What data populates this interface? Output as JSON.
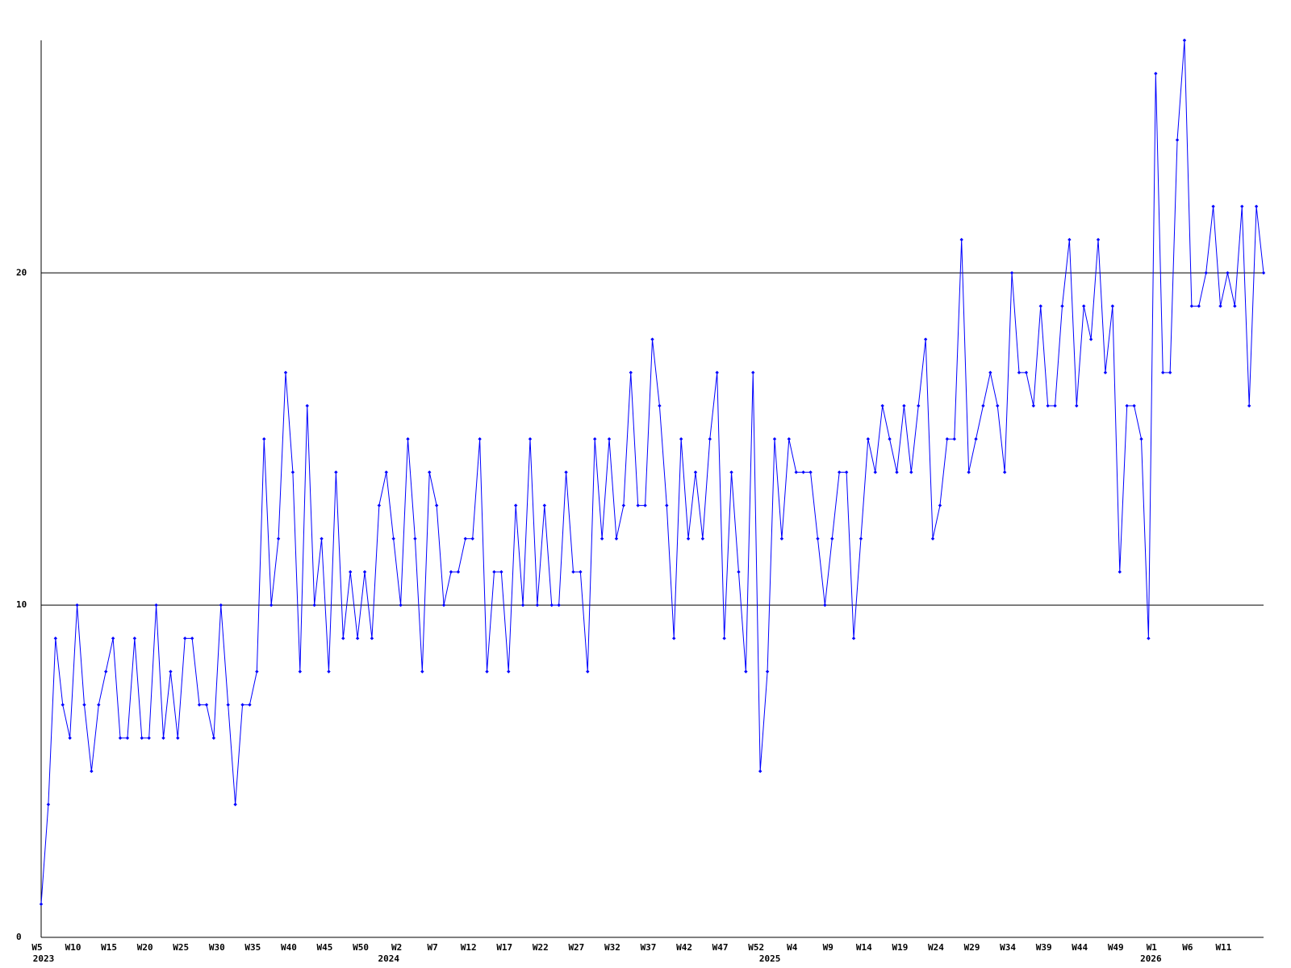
{
  "chart_data": {
    "type": "line",
    "categories": [
      "W5",
      null,
      null,
      null,
      null,
      "W10",
      null,
      null,
      null,
      null,
      "W15",
      null,
      null,
      null,
      null,
      "W20",
      null,
      null,
      null,
      null,
      "W25",
      null,
      null,
      null,
      null,
      "W30",
      null,
      null,
      null,
      null,
      "W35",
      null,
      null,
      null,
      null,
      "W40",
      null,
      null,
      null,
      null,
      "W45",
      null,
      null,
      null,
      null,
      "W50",
      null,
      null,
      null,
      null,
      "W2",
      null,
      null,
      null,
      null,
      "W7",
      null,
      null,
      null,
      null,
      "W12",
      null,
      null,
      null,
      null,
      "W17",
      null,
      null,
      null,
      null,
      "W22",
      null,
      null,
      null,
      null,
      "W27",
      null,
      null,
      null,
      null,
      "W32",
      null,
      null,
      null,
      null,
      "W37",
      null,
      null,
      null,
      null,
      "W42",
      null,
      null,
      null,
      null,
      "W47",
      null,
      null,
      null,
      null,
      "W52",
      null,
      null,
      null,
      null,
      "W4",
      null,
      null,
      null,
      null,
      "W9",
      null,
      null,
      null,
      null,
      "W14",
      null,
      null,
      null,
      null,
      "W19",
      null,
      null,
      null,
      null,
      "W24",
      null,
      null,
      null,
      null,
      "W29",
      null,
      null,
      null,
      null,
      "W34",
      null,
      null,
      null,
      null,
      "W39",
      null,
      null,
      null,
      null,
      "W44",
      null,
      null,
      null,
      null,
      "W49",
      null,
      null,
      null,
      null,
      "W1",
      null,
      null,
      null,
      null,
      "W6",
      null,
      null,
      null,
      null,
      "W11",
      null,
      null,
      null,
      null,
      null
    ],
    "category_groups": [
      "2023",
      null,
      null,
      null,
      null,
      null,
      null,
      null,
      null,
      null,
      null,
      null,
      null,
      null,
      null,
      null,
      null,
      null,
      null,
      null,
      null,
      null,
      null,
      null,
      null,
      null,
      null,
      null,
      null,
      null,
      null,
      null,
      null,
      null,
      null,
      null,
      null,
      null,
      null,
      null,
      null,
      null,
      null,
      null,
      null,
      null,
      null,
      null,
      "2024",
      null,
      null,
      null,
      null,
      null,
      null,
      null,
      null,
      null,
      null,
      null,
      null,
      null,
      null,
      null,
      null,
      null,
      null,
      null,
      null,
      null,
      null,
      null,
      null,
      null,
      null,
      null,
      null,
      null,
      null,
      null,
      null,
      null,
      null,
      null,
      null,
      null,
      null,
      null,
      null,
      null,
      null,
      null,
      null,
      null,
      null,
      null,
      null,
      null,
      null,
      null,
      null,
      "2025",
      null,
      null,
      null,
      null,
      null,
      null,
      null,
      null,
      null,
      null,
      null,
      null,
      null,
      null,
      null,
      null,
      null,
      null,
      null,
      null,
      null,
      null,
      null,
      null,
      null,
      null,
      null,
      null,
      null,
      null,
      null,
      null,
      null,
      null,
      null,
      null,
      null,
      null,
      null,
      null,
      null,
      null,
      null,
      null,
      null,
      null,
      null,
      null,
      null,
      null,
      null,
      null,
      "2026",
      null,
      null,
      null,
      null,
      null,
      null,
      null,
      null,
      null,
      null,
      null,
      null,
      null,
      null,
      null,
      null
    ],
    "values": [
      1,
      4,
      9,
      7,
      6,
      10,
      7,
      5,
      7,
      8,
      9,
      6,
      6,
      9,
      6,
      6,
      10,
      6,
      8,
      6,
      9,
      9,
      7,
      7,
      6,
      10,
      7,
      4,
      7,
      7,
      8,
      15,
      10,
      12,
      17,
      14,
      8,
      16,
      10,
      12,
      8,
      14,
      9,
      11,
      9,
      11,
      9,
      13,
      14,
      12,
      10,
      15,
      12,
      8,
      14,
      13,
      10,
      11,
      11,
      12,
      12,
      15,
      8,
      11,
      11,
      8,
      13,
      10,
      15,
      10,
      13,
      10,
      10,
      14,
      11,
      11,
      8,
      15,
      12,
      15,
      12,
      13,
      17,
      13,
      13,
      18,
      16,
      13,
      9,
      15,
      12,
      14,
      12,
      15,
      17,
      9,
      14,
      11,
      8,
      17,
      5,
      8,
      15,
      12,
      15,
      14,
      14,
      14,
      12,
      10,
      12,
      14,
      14,
      9,
      12,
      15,
      14,
      16,
      15,
      14,
      16,
      14,
      16,
      18,
      12,
      13,
      15,
      15,
      21,
      14,
      15,
      16,
      17,
      16,
      14,
      20,
      17,
      17,
      16,
      19,
      16,
      16,
      19,
      21,
      16,
      19,
      18,
      21,
      17,
      19,
      11,
      16,
      16,
      15,
      9,
      26,
      17,
      17,
      24,
      27,
      19,
      19,
      20,
      22,
      19,
      20,
      19,
      22,
      16,
      22,
      20
    ],
    "color": "#0000ff",
    "ylim": [
      0,
      27
    ],
    "yticks": [
      0,
      10,
      20
    ],
    "grid": true
  }
}
